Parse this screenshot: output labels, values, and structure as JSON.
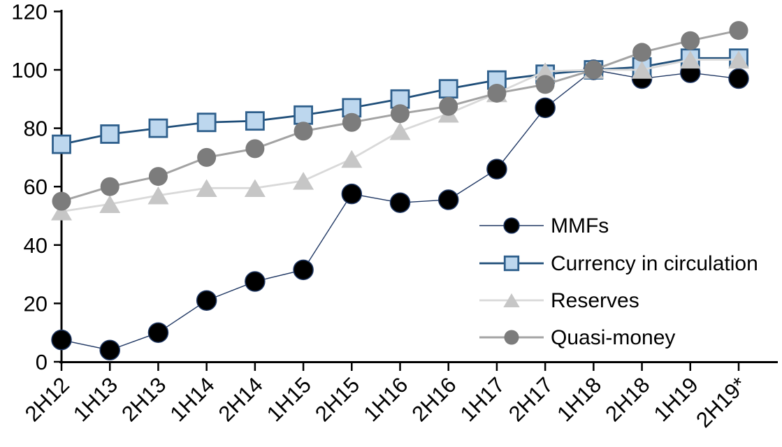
{
  "chart_data": {
    "type": "line",
    "title": "",
    "xlabel": "",
    "ylabel": "",
    "ylim": [
      0,
      120
    ],
    "y_ticks": [
      0,
      20,
      40,
      60,
      80,
      100,
      120
    ],
    "grid": false,
    "legend_position": "inside-right",
    "axis_color": "#000000",
    "text_color": "#000000",
    "background_color": "#ffffff",
    "categories": [
      "2H12",
      "1H13",
      "2H13",
      "1H14",
      "2H14",
      "1H15",
      "2H15",
      "1H16",
      "2H16",
      "1H17",
      "2H17",
      "1H18",
      "2H18",
      "1H19",
      "2H19*"
    ],
    "series": [
      {
        "name": "MMFs",
        "marker": "circle",
        "line_color": "#203864",
        "fill_color": "#000000",
        "stroke_color": "#203864",
        "line_width": 1.4,
        "marker_size": 28,
        "marker_stroke_width": 1.5,
        "values": [
          7.5,
          4,
          10,
          21,
          27.5,
          31.5,
          57.5,
          54.5,
          55.5,
          66,
          87,
          100,
          97,
          99,
          97
        ]
      },
      {
        "name": "Currency in circulation",
        "marker": "square",
        "line_color": "#1f4e79",
        "fill_color": "#bdd7ee",
        "stroke_color": "#2e5f8c",
        "line_width": 2.8,
        "marker_size": 25,
        "marker_stroke_width": 2.8,
        "values": [
          74.5,
          78,
          80,
          82,
          82.5,
          84.5,
          87,
          90,
          93.5,
          96.5,
          98.5,
          100,
          101,
          104,
          104
        ]
      },
      {
        "name": "Reserves",
        "marker": "triangle",
        "line_color": "#d9d9d9",
        "fill_color": "#c6c6c6",
        "stroke_color": "#c6c6c6",
        "line_width": 2.8,
        "marker_size": 30,
        "marker_stroke_width": 0,
        "values": [
          51.5,
          54,
          57,
          59.5,
          59.5,
          62,
          69.5,
          79,
          85,
          92,
          99.5,
          100,
          100,
          103.5,
          103.5
        ]
      },
      {
        "name": "Quasi-money",
        "marker": "circle",
        "line_color": "#a3a3a3",
        "fill_color": "#7c7c7c",
        "stroke_color": "#7c7c7c",
        "line_width": 3,
        "marker_size": 27,
        "marker_stroke_width": 0,
        "values": [
          55,
          60,
          63.5,
          70,
          73,
          79,
          82,
          85,
          87.5,
          92,
          95,
          100,
          106,
          110,
          113.5
        ]
      }
    ]
  }
}
